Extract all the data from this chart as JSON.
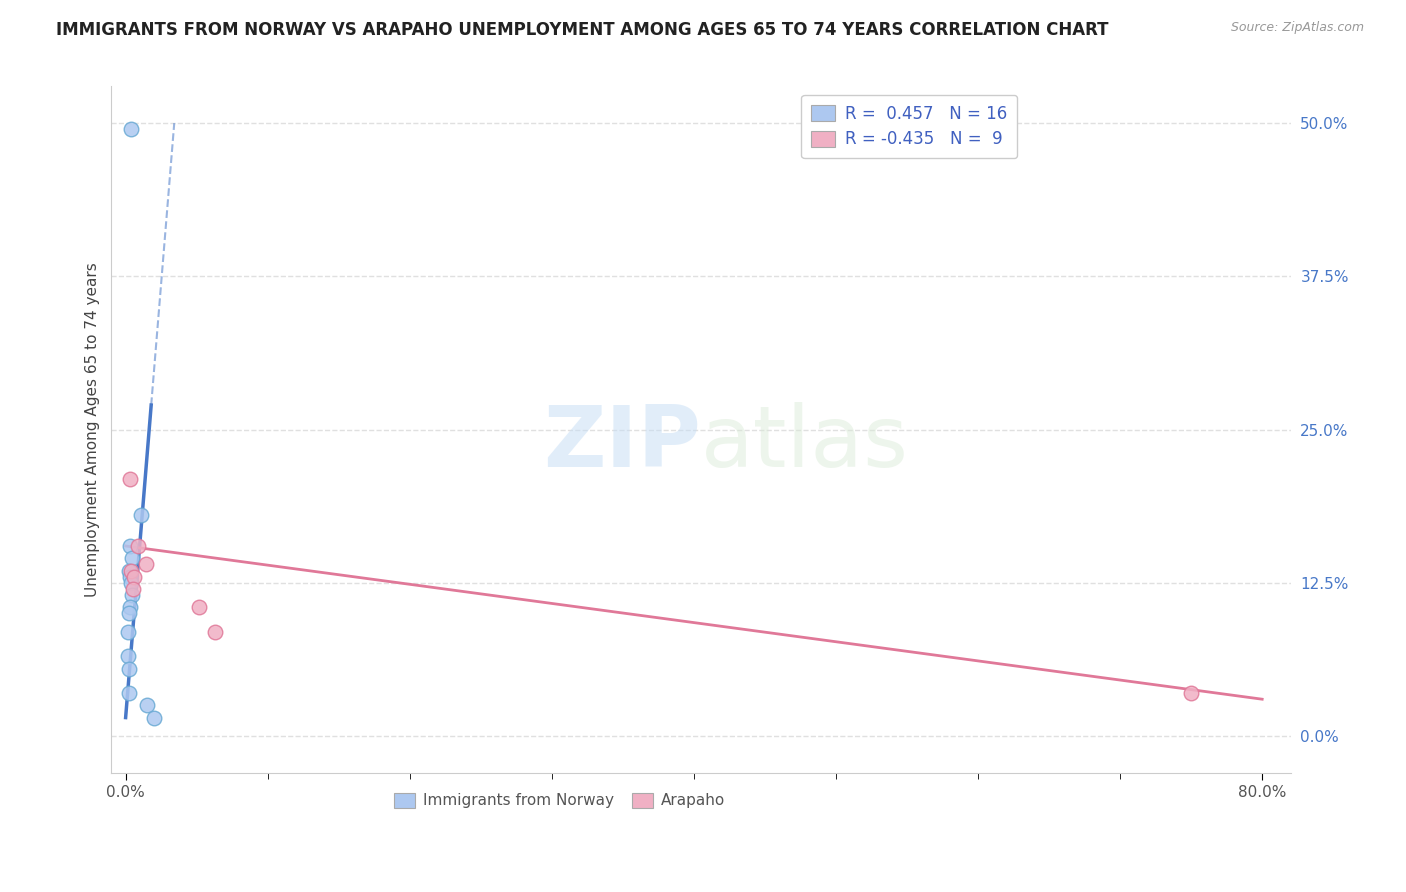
{
  "title": "IMMIGRANTS FROM NORWAY VS ARAPAHO UNEMPLOYMENT AMONG AGES 65 TO 74 YEARS CORRELATION CHART",
  "source": "Source: ZipAtlas.com",
  "ylabel": "Unemployment Among Ages 65 to 74 years",
  "ytick_values": [
    0.0,
    12.5,
    25.0,
    37.5,
    50.0
  ],
  "xlim": [
    -1.0,
    82.0
  ],
  "ylim": [
    -3.0,
    53.0
  ],
  "watermark_zip": "ZIP",
  "watermark_atlas": "atlas",
  "blue_R": 0.457,
  "blue_N": 16,
  "pink_R": -0.435,
  "pink_N": 9,
  "blue_face": "#adc8f0",
  "pink_face": "#f0b0c4",
  "blue_edge": "#6aaad4",
  "pink_edge": "#e07898",
  "blue_line": "#4878c8",
  "pink_line": "#e07898",
  "blue_scatter_x": [
    0.35,
    1.1,
    0.28,
    0.45,
    0.25,
    0.32,
    0.38,
    0.42,
    0.3,
    0.22,
    0.2,
    0.18,
    0.26,
    0.24,
    1.5,
    2.0
  ],
  "blue_scatter_y": [
    49.5,
    18.0,
    15.5,
    14.5,
    13.5,
    13.0,
    12.5,
    11.5,
    10.5,
    10.0,
    8.5,
    6.5,
    5.5,
    3.5,
    2.5,
    1.5
  ],
  "pink_scatter_x": [
    0.3,
    0.85,
    5.2,
    6.3,
    1.4,
    0.4,
    0.6,
    75.0,
    0.5
  ],
  "pink_scatter_y": [
    21.0,
    15.5,
    10.5,
    8.5,
    14.0,
    13.5,
    13.0,
    3.5,
    12.0
  ],
  "blue_solid_x0": 0.0,
  "blue_solid_y0": 1.5,
  "blue_solid_x1": 1.8,
  "blue_solid_y1": 27.0,
  "blue_dash_x0": 1.8,
  "blue_dash_y0": 27.0,
  "blue_dash_x1": 1.2,
  "blue_dash_y1": 49.5,
  "pink_x0": 0.0,
  "pink_y0": 15.5,
  "pink_x1": 80.0,
  "pink_y1": 3.0,
  "title_fontsize": 12,
  "label_fontsize": 11,
  "tick_fontsize": 11,
  "scatter_size": 110,
  "bg": "#ffffff",
  "grid_color": "#e0e0e0",
  "grid_style": "--"
}
